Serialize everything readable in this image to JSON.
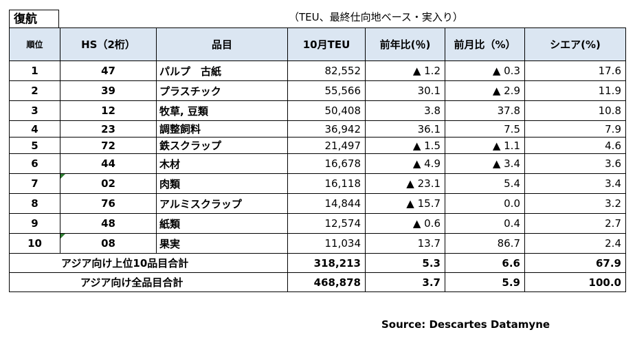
{
  "title": "復航",
  "subtitle": "（TEU、最終仕向地ベース・実入り）",
  "columns": [
    "順位",
    "HS（2桁）",
    "品目",
    "10月TEU",
    "前年比(％)",
    "前月比（%）",
    "シエア(%)"
  ],
  "rows": [
    {
      "rank": "1",
      "hs": "47",
      "item": "パルプ　古紙",
      "teu": "82,552",
      "yoy": "▲ 1.2",
      "mom": "▲ 0.3",
      "share": "17.6",
      "flag": false
    },
    {
      "rank": "2",
      "hs": "39",
      "item": "プラスチック",
      "teu": "55,566",
      "yoy": "30.1",
      "mom": "▲ 2.9",
      "share": "11.9",
      "flag": false
    },
    {
      "rank": "3",
      "hs": "12",
      "item": "牧草, 豆類",
      "teu": "50,408",
      "yoy": "3.8",
      "mom": "37.8",
      "share": "10.8",
      "flag": false
    },
    {
      "rank": "4",
      "hs": "23",
      "item": "調整飼料",
      "teu": "36,942",
      "yoy": "36.1",
      "mom": "7.5",
      "share": "7.9",
      "flag": false
    },
    {
      "rank": "5",
      "hs": "72",
      "item": "鉄スクラップ",
      "teu": "21,497",
      "yoy": "▲ 1.5",
      "mom": "▲ 1.1",
      "share": "4.6",
      "flag": false
    },
    {
      "rank": "6",
      "hs": "44",
      "item": "木材",
      "teu": "16,678",
      "yoy": "▲ 4.9",
      "mom": "▲ 3.4",
      "share": "3.6",
      "flag": false
    },
    {
      "rank": "7",
      "hs": "02",
      "item": "肉類",
      "teu": "16,118",
      "yoy": "▲ 23.1",
      "mom": "5.4",
      "share": "3.4",
      "flag": true
    },
    {
      "rank": "8",
      "hs": "76",
      "item": "アルミスクラップ",
      "teu": "14,844",
      "yoy": "▲ 15.7",
      "mom": "0.0",
      "share": "3.2",
      "flag": false
    },
    {
      "rank": "9",
      "hs": "48",
      "item": "紙類",
      "teu": "12,574",
      "yoy": "▲ 0.6",
      "mom": "0.4",
      "share": "2.7",
      "flag": false
    },
    {
      "rank": "10",
      "hs": "08",
      "item": "果実",
      "teu": "11,034",
      "yoy": "13.7",
      "mom": "86.7",
      "share": "2.4",
      "flag": true
    }
  ],
  "totals": [
    {
      "label": "アジア向け上位10品目合計",
      "teu": "318,213",
      "yoy": "5.3",
      "mom": "6.6",
      "share": "67.9"
    },
    {
      "label": "アジア向け全品目合計",
      "teu": "468,878",
      "yoy": "3.7",
      "mom": "5.9",
      "share": "100.0"
    }
  ],
  "source": "Source: Descartes Datamyne",
  "colors": {
    "header_bg": "#dbe6f2",
    "flag_marker": "#2e7d32"
  }
}
